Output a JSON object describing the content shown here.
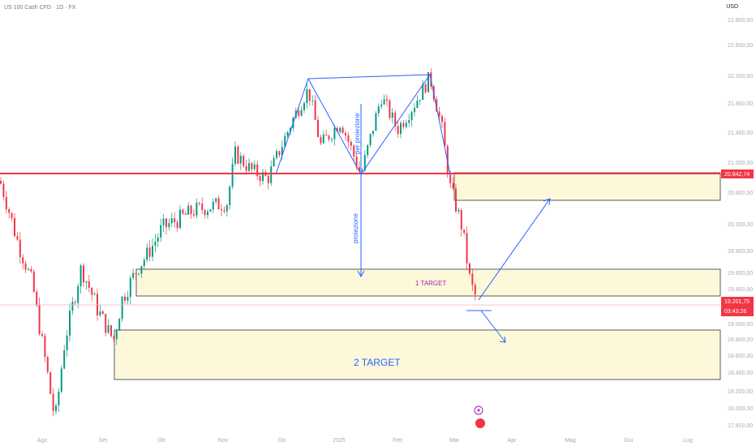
{
  "header": {
    "title": "US 100 Cash CFD · 1D · FX",
    "currency": "USD"
  },
  "price_axis": [
    "22.800,00",
    "22.600,00",
    "22.200,00",
    "21.800,00",
    "21.400,00",
    "21.000,00",
    "20.600,00",
    "20.200,00",
    "19.900,00",
    "19.600,00",
    "19.400,00",
    "19.000,00",
    "18.800,00",
    "18.600,00",
    "18.400,00",
    "18.200,00",
    "18.000,00",
    "17.810,00"
  ],
  "time_axis": [
    "Ago",
    "Set",
    "Ott",
    "Nov",
    "Dic",
    "2025",
    "Feb",
    "Mar",
    "Apr",
    "Mag",
    "Giu",
    "Lug"
  ],
  "labels": {
    "resistance": "20.842,74",
    "last_price": "19.201,75",
    "countdown": "03:43:26",
    "target1": "1 TARGET",
    "target2": "2 TARGET",
    "proj1": "per proiezione",
    "proj2": "proiezione"
  },
  "colors": {
    "up": "#089981",
    "down": "#f23645",
    "zone": "#fdf8d9",
    "drawing": "#2962ff"
  },
  "price_path": [
    20750,
    20050,
    19460,
    18580,
    17850,
    18780,
    19660,
    19170,
    18780,
    19270,
    19660,
    20150,
    20370,
    20470,
    21110,
    20890,
    20780,
    21550,
    22000,
    21220,
    21550,
    20830,
    21890,
    21440,
    21770,
    22170,
    21440,
    20670,
    20150,
    19460,
    19220
  ]
}
